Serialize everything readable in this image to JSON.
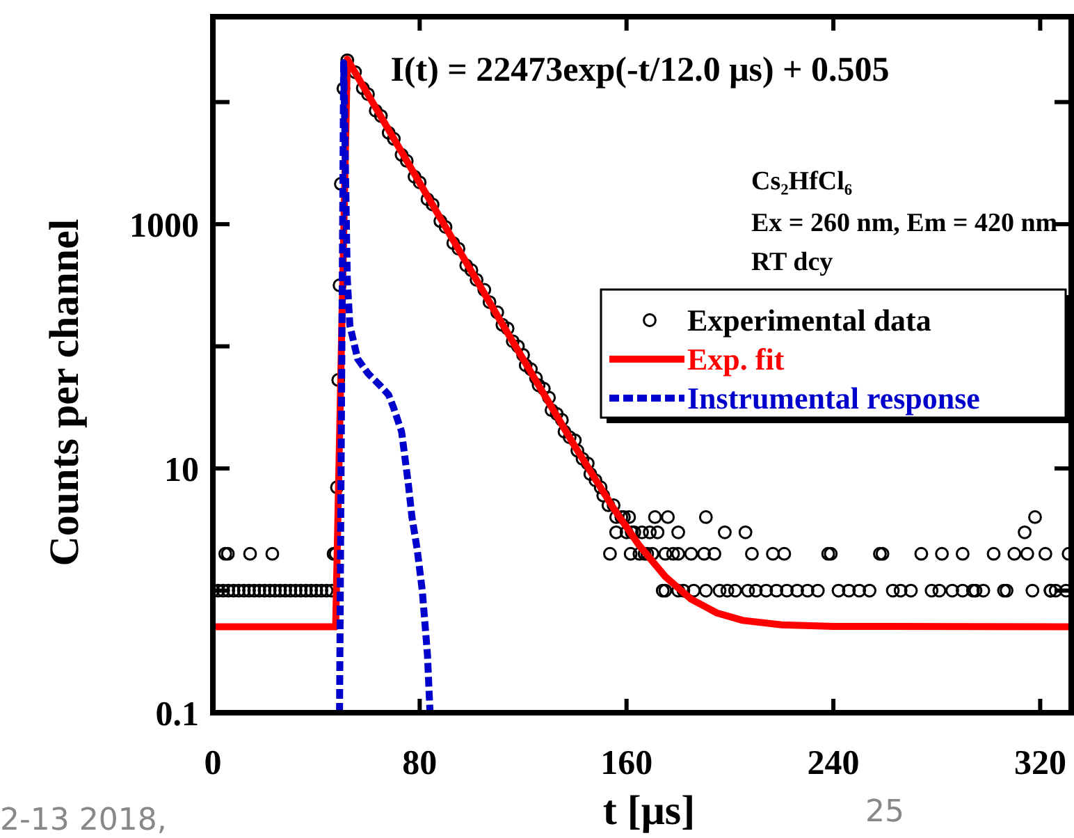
{
  "chart_data": {
    "type": "scatter",
    "title": "I(t) = 22473exp(-t/12.0 μs) + 0.505",
    "xlabel": "t [μs]",
    "ylabel": "Counts per channel",
    "annotations": [
      "Cs₂HfCl₆",
      "Ex = 260 nm, Em = 420 nm",
      "RT dcy",
      "2-13 2018,",
      "25"
    ],
    "log": "y",
    "grid": false,
    "legend": "right",
    "xlim": [
      0,
      332
    ],
    "ylim": [
      0.1,
      50000
    ],
    "xticks": [
      0,
      80,
      160,
      240,
      320
    ],
    "yticks": [
      0.1,
      {
        "value": 1,
        "label": null
      },
      10,
      {
        "value": 100,
        "label": null
      },
      1000,
      {
        "value": 10000,
        "label": null
      }
    ],
    "series": [
      {
        "name": "Experimental data",
        "color": "#000000",
        "marker": "circle",
        "x": [
          0,
          2,
          4,
          4.8,
          5.8,
          6,
          8,
          10,
          12,
          14,
          14.4,
          16,
          18,
          20,
          22,
          23,
          24,
          26,
          28,
          30,
          32,
          34,
          36,
          38,
          40,
          42,
          44,
          46,
          46.7,
          47.5,
          48,
          48.5,
          49,
          49.5,
          50.5,
          52,
          55,
          58,
          60,
          63,
          65,
          68,
          70,
          73,
          75,
          78,
          80,
          83,
          85,
          88,
          90,
          93,
          95,
          98,
          100,
          102,
          105,
          107,
          110,
          112,
          114,
          116,
          118,
          120,
          121,
          123,
          125,
          126,
          128,
          130,
          131,
          133,
          135,
          136,
          138,
          140,
          141,
          143,
          145,
          146,
          148,
          150,
          151,
          153,
          153.6,
          155,
          156,
          156,
          158,
          159,
          160,
          161,
          161.6,
          162,
          163,
          165,
          166,
          167,
          168,
          169,
          170,
          171,
          172,
          174,
          175,
          175,
          176,
          178,
          180,
          180,
          180,
          182,
          185,
          186,
          190,
          190.7,
          190.7,
          194,
          196,
          198,
          199,
          202,
          206,
          207,
          208.5,
          210,
          214,
          216.6,
          218,
          221,
          222,
          226,
          230,
          234,
          238,
          239,
          242,
          246,
          250,
          254,
          258,
          259,
          263,
          266,
          270,
          274,
          278,
          281,
          282,
          286,
          290,
          290,
          294,
          295,
          298,
          302,
          306,
          307,
          310,
          314,
          315,
          317,
          318,
          322,
          324,
          324,
          326,
          330,
          331
        ],
        "values": [
          1,
          1,
          1,
          2,
          2,
          1,
          1,
          1,
          1,
          1,
          2,
          1,
          1,
          1,
          1,
          2,
          1,
          1,
          1,
          1,
          1,
          1,
          1,
          1,
          1,
          1,
          1,
          1,
          2,
          2,
          7,
          53,
          316,
          2140,
          12900,
          22000,
          17600,
          13000,
          11600,
          8500,
          7700,
          5600,
          5000,
          3700,
          3300,
          2450,
          2200,
          1600,
          1450,
          1060,
          950,
          700,
          630,
          460,
          420,
          350,
          290,
          230,
          190,
          150,
          140,
          110,
          100,
          85,
          70,
          65,
          55,
          48,
          45,
          38,
          30,
          28,
          25,
          20,
          18,
          17,
          14,
          12,
          11,
          9,
          8,
          7,
          6,
          5,
          2,
          5,
          4,
          3,
          4,
          4,
          3,
          4,
          2,
          3,
          3,
          2,
          3,
          2,
          2,
          3,
          2,
          4,
          3,
          1,
          2,
          1,
          4,
          2,
          2,
          1,
          3,
          1,
          2,
          1,
          2,
          4,
          1,
          2,
          1,
          3,
          1,
          1,
          3,
          1,
          2,
          1,
          1,
          2,
          1,
          2,
          1,
          1,
          1,
          1,
          2,
          2,
          1,
          1,
          1,
          1,
          2,
          2,
          1,
          1,
          1,
          2,
          1,
          1,
          2,
          1,
          1,
          2,
          1,
          1,
          1,
          2,
          1,
          1,
          2,
          3,
          2,
          1,
          4,
          2,
          1,
          1,
          1,
          1,
          2
        ]
      },
      {
        "name": "Exp. fit",
        "type": "line",
        "color": "#ff0000",
        "line_style": "solid",
        "x": [
          0,
          47.5,
          52,
          80,
          110,
          140,
          155,
          165,
          175,
          185,
          195,
          205,
          220,
          240,
          332
        ],
        "values": [
          0.505,
          0.505,
          22473.5,
          2180,
          179,
          15.2,
          4.71,
          2.33,
          1.3,
          0.85,
          0.655,
          0.57,
          0.524,
          0.509,
          0.505
        ]
      },
      {
        "name": "Instrumental response",
        "type": "line",
        "color": "#0000cc",
        "line_style": "dashed",
        "x": [
          49,
          50.6,
          52,
          53,
          56,
          60,
          65,
          68,
          70,
          73,
          75.6,
          77,
          79,
          81,
          83,
          84
        ],
        "values": [
          0.1,
          21000,
          355,
          148,
          79,
          60,
          47,
          40,
          31,
          20,
          7.5,
          4,
          2.2,
          1,
          0.3,
          0.1
        ]
      }
    ]
  }
}
